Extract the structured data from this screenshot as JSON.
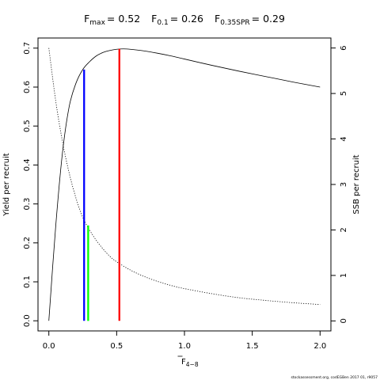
{
  "chart_data": {
    "type": "line",
    "title_parts": [
      {
        "main": "F",
        "sub": "max",
        "value": "= 0.52"
      },
      {
        "main": "F",
        "sub": "0.1",
        "value": "= 0.26"
      },
      {
        "main": "F",
        "sub": "0.35SPR",
        "value": "= 0.29"
      }
    ],
    "xlabel": {
      "main": "F",
      "sub": "4−8"
    },
    "ylabel_left": "Yield per recruit",
    "ylabel_right": "SSB per recruit",
    "xlim": [
      -0.08,
      2.08
    ],
    "ylim_left": [
      -0.026,
      0.726
    ],
    "ylim_right": [
      -0.22,
      6.22
    ],
    "x_ticks": [
      0,
      0.5,
      1,
      1.5,
      2
    ],
    "x_tick_labels": [
      "0.0",
      "0.5",
      "1.0",
      "1.5",
      "2.0"
    ],
    "y_left_ticks": [
      0,
      0.1,
      0.2,
      0.3,
      0.4,
      0.5,
      0.6,
      0.7
    ],
    "y_left_tick_labels": [
      "0.0",
      "0.1",
      "0.2",
      "0.3",
      "0.4",
      "0.5",
      "0.6",
      "0.7"
    ],
    "y_right_ticks": [
      0,
      1,
      2,
      3,
      4,
      5,
      6
    ],
    "y_right_tick_labels": [
      "0",
      "1",
      "2",
      "3",
      "4",
      "5",
      "6"
    ],
    "series": [
      {
        "axis": "left",
        "style": "solid",
        "x": [
          0,
          0.05,
          0.1,
          0.15,
          0.2,
          0.25,
          0.3,
          0.35,
          0.4,
          0.45,
          0.5,
          0.55,
          0.6,
          0.7,
          0.8,
          0.9,
          1.0,
          1.2,
          1.4,
          1.6,
          1.8,
          2.0
        ],
        "y": [
          0,
          0.24,
          0.43,
          0.55,
          0.61,
          0.645,
          0.665,
          0.68,
          0.689,
          0.694,
          0.697,
          0.698,
          0.697,
          0.693,
          0.687,
          0.68,
          0.672,
          0.656,
          0.641,
          0.627,
          0.613,
          0.6
        ]
      },
      {
        "axis": "right",
        "style": "dotted",
        "x": [
          0,
          0.05,
          0.1,
          0.15,
          0.2,
          0.25,
          0.3,
          0.35,
          0.4,
          0.45,
          0.5,
          0.6,
          0.7,
          0.8,
          0.9,
          1.0,
          1.2,
          1.4,
          1.6,
          1.8,
          2.0
        ],
        "y": [
          6.0,
          4.85,
          3.95,
          3.25,
          2.7,
          2.28,
          2.0,
          1.77,
          1.58,
          1.42,
          1.3,
          1.12,
          0.98,
          0.87,
          0.78,
          0.71,
          0.6,
          0.51,
          0.45,
          0.4,
          0.36
        ]
      }
    ],
    "reference_lines": [
      {
        "name": "F0.1",
        "x": 0.26,
        "y_from": 0,
        "y_to": 0.645,
        "axis": "left",
        "color": "#0000ff"
      },
      {
        "name": "F0.35SPR",
        "x": 0.29,
        "y_from": 0,
        "y_to": 2.1,
        "axis": "right",
        "color": "#00ff00"
      },
      {
        "name": "Fmax",
        "x": 0.52,
        "y_from": 0,
        "y_to": 0.698,
        "axis": "left",
        "color": "#ff0000"
      }
    ],
    "grid": false,
    "legend": "none",
    "footer": "stockassessment.org, codEGBen 2017 01, r9057"
  }
}
